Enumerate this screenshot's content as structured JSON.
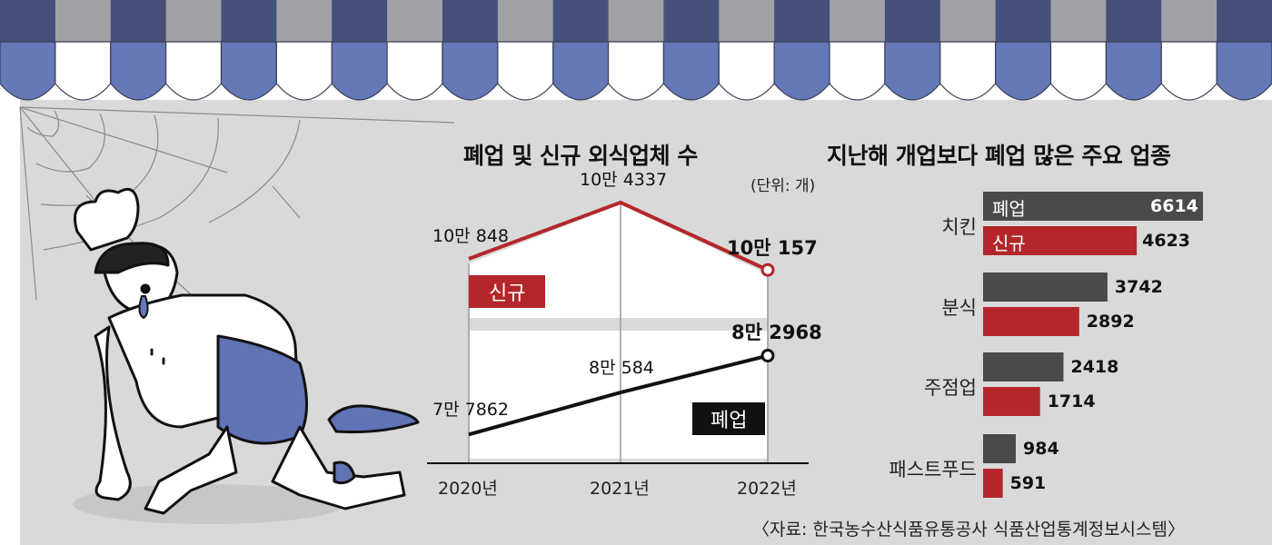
{
  "colors": {
    "awning_dark": "#45507a",
    "awning_mid": "#6578b8",
    "awning_gray": "#9fa1a4",
    "background": "#d9d9d9",
    "new_series": "#b3272a",
    "closed_series": "#111111",
    "bar_closed": "#4a4a4a",
    "bar_new": "#b3272a"
  },
  "line_chart": {
    "title": "폐업 및 신규 외식업체 수",
    "unit": "(단위: 개)"
  },
  "bar_chart": {
    "title": "지난해 개업보다 폐업 많은 주요 업종"
  },
  "source": "〈자료: 한국농수산식품유통공사 식품산업통계정보시스템〉",
  "chart_data": [
    {
      "type": "line",
      "title": "폐업 및 신규 외식업체 수",
      "unit": "(단위: 개)",
      "categories": [
        "2020년",
        "2021년",
        "2022년"
      ],
      "series": [
        {
          "name": "신규",
          "values": [
            100848,
            104337,
            100157
          ],
          "labels": [
            "10만 848",
            "10만 4337",
            "10만 157"
          ]
        },
        {
          "name": "폐업",
          "values": [
            77862,
            80584,
            82968
          ],
          "labels": [
            "7만 7862",
            "8만 584",
            "8만 2968"
          ]
        }
      ]
    },
    {
      "type": "bar",
      "orientation": "horizontal",
      "title": "지난해 개업보다 폐업 많은 주요 업종",
      "categories": [
        "치킨",
        "분식",
        "주점업",
        "패스트푸드"
      ],
      "series": [
        {
          "name": "폐업",
          "values": [
            6614,
            3742,
            2418,
            984
          ]
        },
        {
          "name": "신규",
          "values": [
            4623,
            2892,
            1714,
            591
          ]
        }
      ]
    }
  ]
}
